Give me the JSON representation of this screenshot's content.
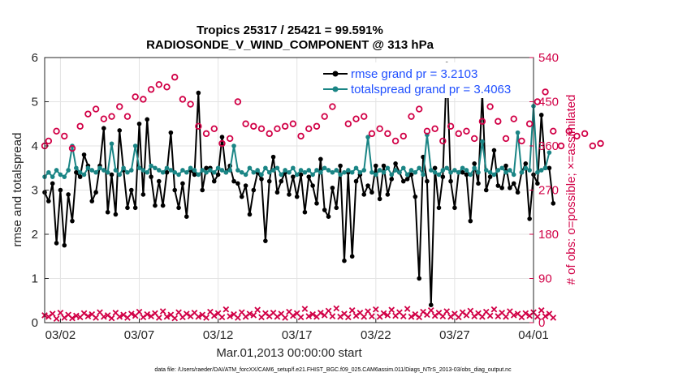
{
  "chart_data": {
    "type": "line",
    "title": "Tropics 25317 / 25421 = 99.591%",
    "subtitle": "RADIOSONDE_V_WIND_COMPONENT @ 313 hPa",
    "xlabel": "Mar.01,2013 00:00:00 start",
    "ylabel": "rmse and totalspread",
    "y2label": "# of obs: o=possible; ×=assimilated",
    "xlim": [
      0,
      124
    ],
    "ylim": [
      0,
      6
    ],
    "y2lim": [
      0,
      540
    ],
    "x_tick_positions": [
      4,
      24,
      44,
      64,
      84,
      104,
      124
    ],
    "x_tick_labels": [
      "03/02",
      "03/07",
      "03/12",
      "03/17",
      "03/22",
      "03/27",
      "04/01"
    ],
    "y_ticks": [
      0,
      1,
      2,
      3,
      4,
      5,
      6
    ],
    "y2_ticks": [
      0,
      90,
      180,
      270,
      360,
      450,
      540
    ],
    "grid": true,
    "legend_position": "top-right",
    "series": [
      {
        "name": "rmse grand pr = 3.2103",
        "axis": "left",
        "color": "#000000",
        "marker": "dot",
        "values": [
          2.95,
          2.75,
          3.15,
          1.8,
          3.0,
          1.75,
          2.9,
          2.3,
          3.4,
          3.3,
          3.8,
          3.55,
          2.75,
          2.95,
          3.55,
          4.4,
          2.5,
          3.35,
          2.45,
          4.35,
          3.45,
          2.6,
          3.0,
          2.6,
          4.5,
          2.9,
          4.6,
          3.3,
          2.65,
          3.2,
          2.65,
          3.4,
          4.3,
          3.0,
          2.6,
          3.15,
          2.4,
          3.45,
          3.35,
          5.2,
          3.0,
          3.5,
          3.5,
          3.2,
          3.35,
          4.2,
          3.4,
          3.55,
          3.2,
          3.15,
          2.85,
          3.1,
          2.45,
          3.0,
          3.4,
          3.25,
          1.85,
          3.2,
          3.75,
          2.95,
          3.2,
          3.4,
          2.9,
          3.3,
          2.85,
          3.35,
          2.5,
          3.3,
          3.1,
          2.7,
          3.7,
          2.55,
          2.4,
          3.05,
          2.6,
          3.55,
          1.4,
          3.4,
          1.5,
          3.2,
          3.35,
          2.9,
          3.1,
          2.95,
          3.55,
          2.8,
          3.55,
          2.9,
          3.25,
          3.6,
          3.4,
          3.2,
          3.25,
          3.35,
          2.85,
          1.0,
          3.75,
          3.2,
          0.4,
          3.5,
          2.6,
          3.3,
          5.85,
          3.2,
          2.6,
          3.4,
          3.4,
          3.35,
          2.3,
          3.6,
          3.15,
          5.2,
          3.0,
          3.3,
          3.9,
          3.1,
          3.05,
          3.55,
          3.05,
          3.15,
          2.95,
          3.4,
          3.6,
          2.35,
          3.35,
          3.15,
          4.7,
          3.5,
          3.5,
          2.7
        ]
      },
      {
        "name": "totalspread grand pr = 3.4063",
        "axis": "left",
        "color": "#1a8585",
        "marker": "dot",
        "values": [
          3.3,
          3.4,
          3.3,
          3.45,
          3.35,
          3.3,
          3.45,
          4.0,
          3.5,
          3.4,
          3.35,
          3.5,
          3.45,
          3.4,
          3.5,
          3.45,
          3.4,
          4.05,
          3.45,
          3.35,
          3.5,
          3.4,
          3.45,
          4.0,
          3.5,
          3.45,
          3.4,
          3.55,
          3.5,
          3.45,
          3.4,
          3.5,
          3.45,
          3.4,
          3.35,
          3.45,
          3.4,
          3.5,
          3.45,
          3.35,
          3.45,
          3.4,
          3.45,
          3.4,
          3.5,
          3.45,
          3.4,
          3.45,
          4.0,
          3.45,
          3.4,
          3.35,
          3.5,
          3.4,
          3.45,
          3.35,
          3.5,
          3.4,
          3.45,
          3.5,
          3.35,
          3.45,
          3.4,
          3.5,
          3.35,
          3.45,
          3.4,
          3.45,
          3.35,
          3.45,
          3.4,
          3.5,
          3.45,
          3.4,
          3.45,
          3.35,
          3.4,
          3.45,
          3.4,
          3.5,
          3.4,
          3.45,
          4.2,
          3.4,
          3.35,
          3.45,
          3.4,
          3.5,
          3.35,
          3.45,
          3.4,
          3.5,
          3.35,
          3.45,
          3.4,
          3.5,
          3.35,
          4.25,
          3.45,
          3.4,
          3.35,
          3.45,
          3.5,
          3.4,
          3.45,
          3.4,
          3.5,
          3.45,
          3.35,
          3.5,
          3.4,
          4.1,
          3.45,
          3.4,
          3.35,
          3.45,
          3.5,
          3.4,
          3.45,
          3.35,
          4.3,
          3.4,
          3.5,
          3.45,
          4.9,
          3.4,
          3.45,
          3.5,
          3.85
        ]
      },
      {
        "name": "possible obs (o)",
        "axis": "right",
        "color": "#d10046",
        "marker": "circle",
        "values": [
          360,
          370,
          null,
          390,
          null,
          380,
          null,
          355,
          null,
          400,
          null,
          425,
          null,
          435,
          null,
          415,
          null,
          420,
          null,
          440,
          null,
          420,
          null,
          460,
          null,
          455,
          null,
          475,
          null,
          485,
          null,
          480,
          null,
          500,
          null,
          455,
          null,
          445,
          null,
          400,
          null,
          385,
          null,
          395,
          null,
          365,
          null,
          375,
          null,
          450,
          null,
          405,
          null,
          400,
          null,
          395,
          null,
          385,
          null,
          395,
          null,
          400,
          null,
          405,
          null,
          380,
          null,
          395,
          null,
          400,
          null,
          420,
          null,
          440,
          null,
          495,
          null,
          405,
          null,
          415,
          null,
          420,
          null,
          385,
          null,
          395,
          null,
          385,
          null,
          370,
          null,
          380,
          null,
          420,
          null,
          435,
          null,
          390,
          null,
          395,
          null,
          370,
          null,
          400,
          null,
          385,
          null,
          390,
          null,
          375,
          null,
          410,
          null,
          440,
          null,
          410,
          null,
          375,
          null,
          415,
          null,
          370,
          null,
          405,
          null,
          450,
          null,
          470,
          null,
          390,
          null,
          360,
          null,
          390,
          null,
          380,
          null,
          385,
          null,
          360,
          null,
          365
        ]
      },
      {
        "name": "assimilated obs (×)",
        "axis": "right",
        "color": "#d10046",
        "marker": "x",
        "values": [
          15,
          12,
          18,
          8,
          20,
          10,
          16,
          9,
          14,
          11,
          19,
          13,
          17,
          10,
          21,
          12,
          15,
          9,
          20,
          12,
          16,
          10,
          18,
          14,
          22,
          11,
          17,
          13,
          19,
          10,
          23,
          12,
          16,
          9,
          21,
          11,
          18,
          13,
          20,
          12,
          16,
          10,
          22,
          14,
          19,
          11,
          27,
          13,
          17,
          10,
          21,
          12,
          18,
          15,
          26,
          11,
          19,
          13,
          20,
          12,
          18,
          10,
          22,
          14,
          19,
          11,
          28,
          13,
          17,
          12,
          20,
          15,
          24,
          13,
          29,
          12,
          18,
          11,
          25,
          14,
          20,
          12,
          23,
          13,
          27,
          12,
          19,
          15,
          26,
          14,
          21,
          13,
          28,
          12,
          17,
          11,
          22,
          16,
          25,
          14,
          20,
          13,
          23,
          12,
          18,
          11,
          21,
          15,
          24,
          13,
          19,
          12,
          22,
          14,
          27,
          13,
          20,
          12,
          23,
          15,
          18,
          11,
          19,
          14,
          21,
          12,
          25,
          13,
          18,
          10
        ]
      }
    ]
  },
  "footnote": "data file: /Users/raeder/DAI/ATM_forcXX/CAM6_setup/f.e21.FHIST_BGC.f09_025.CAM6assim.011/Diags_NTrS_2013-03/obs_diag_output.nc"
}
